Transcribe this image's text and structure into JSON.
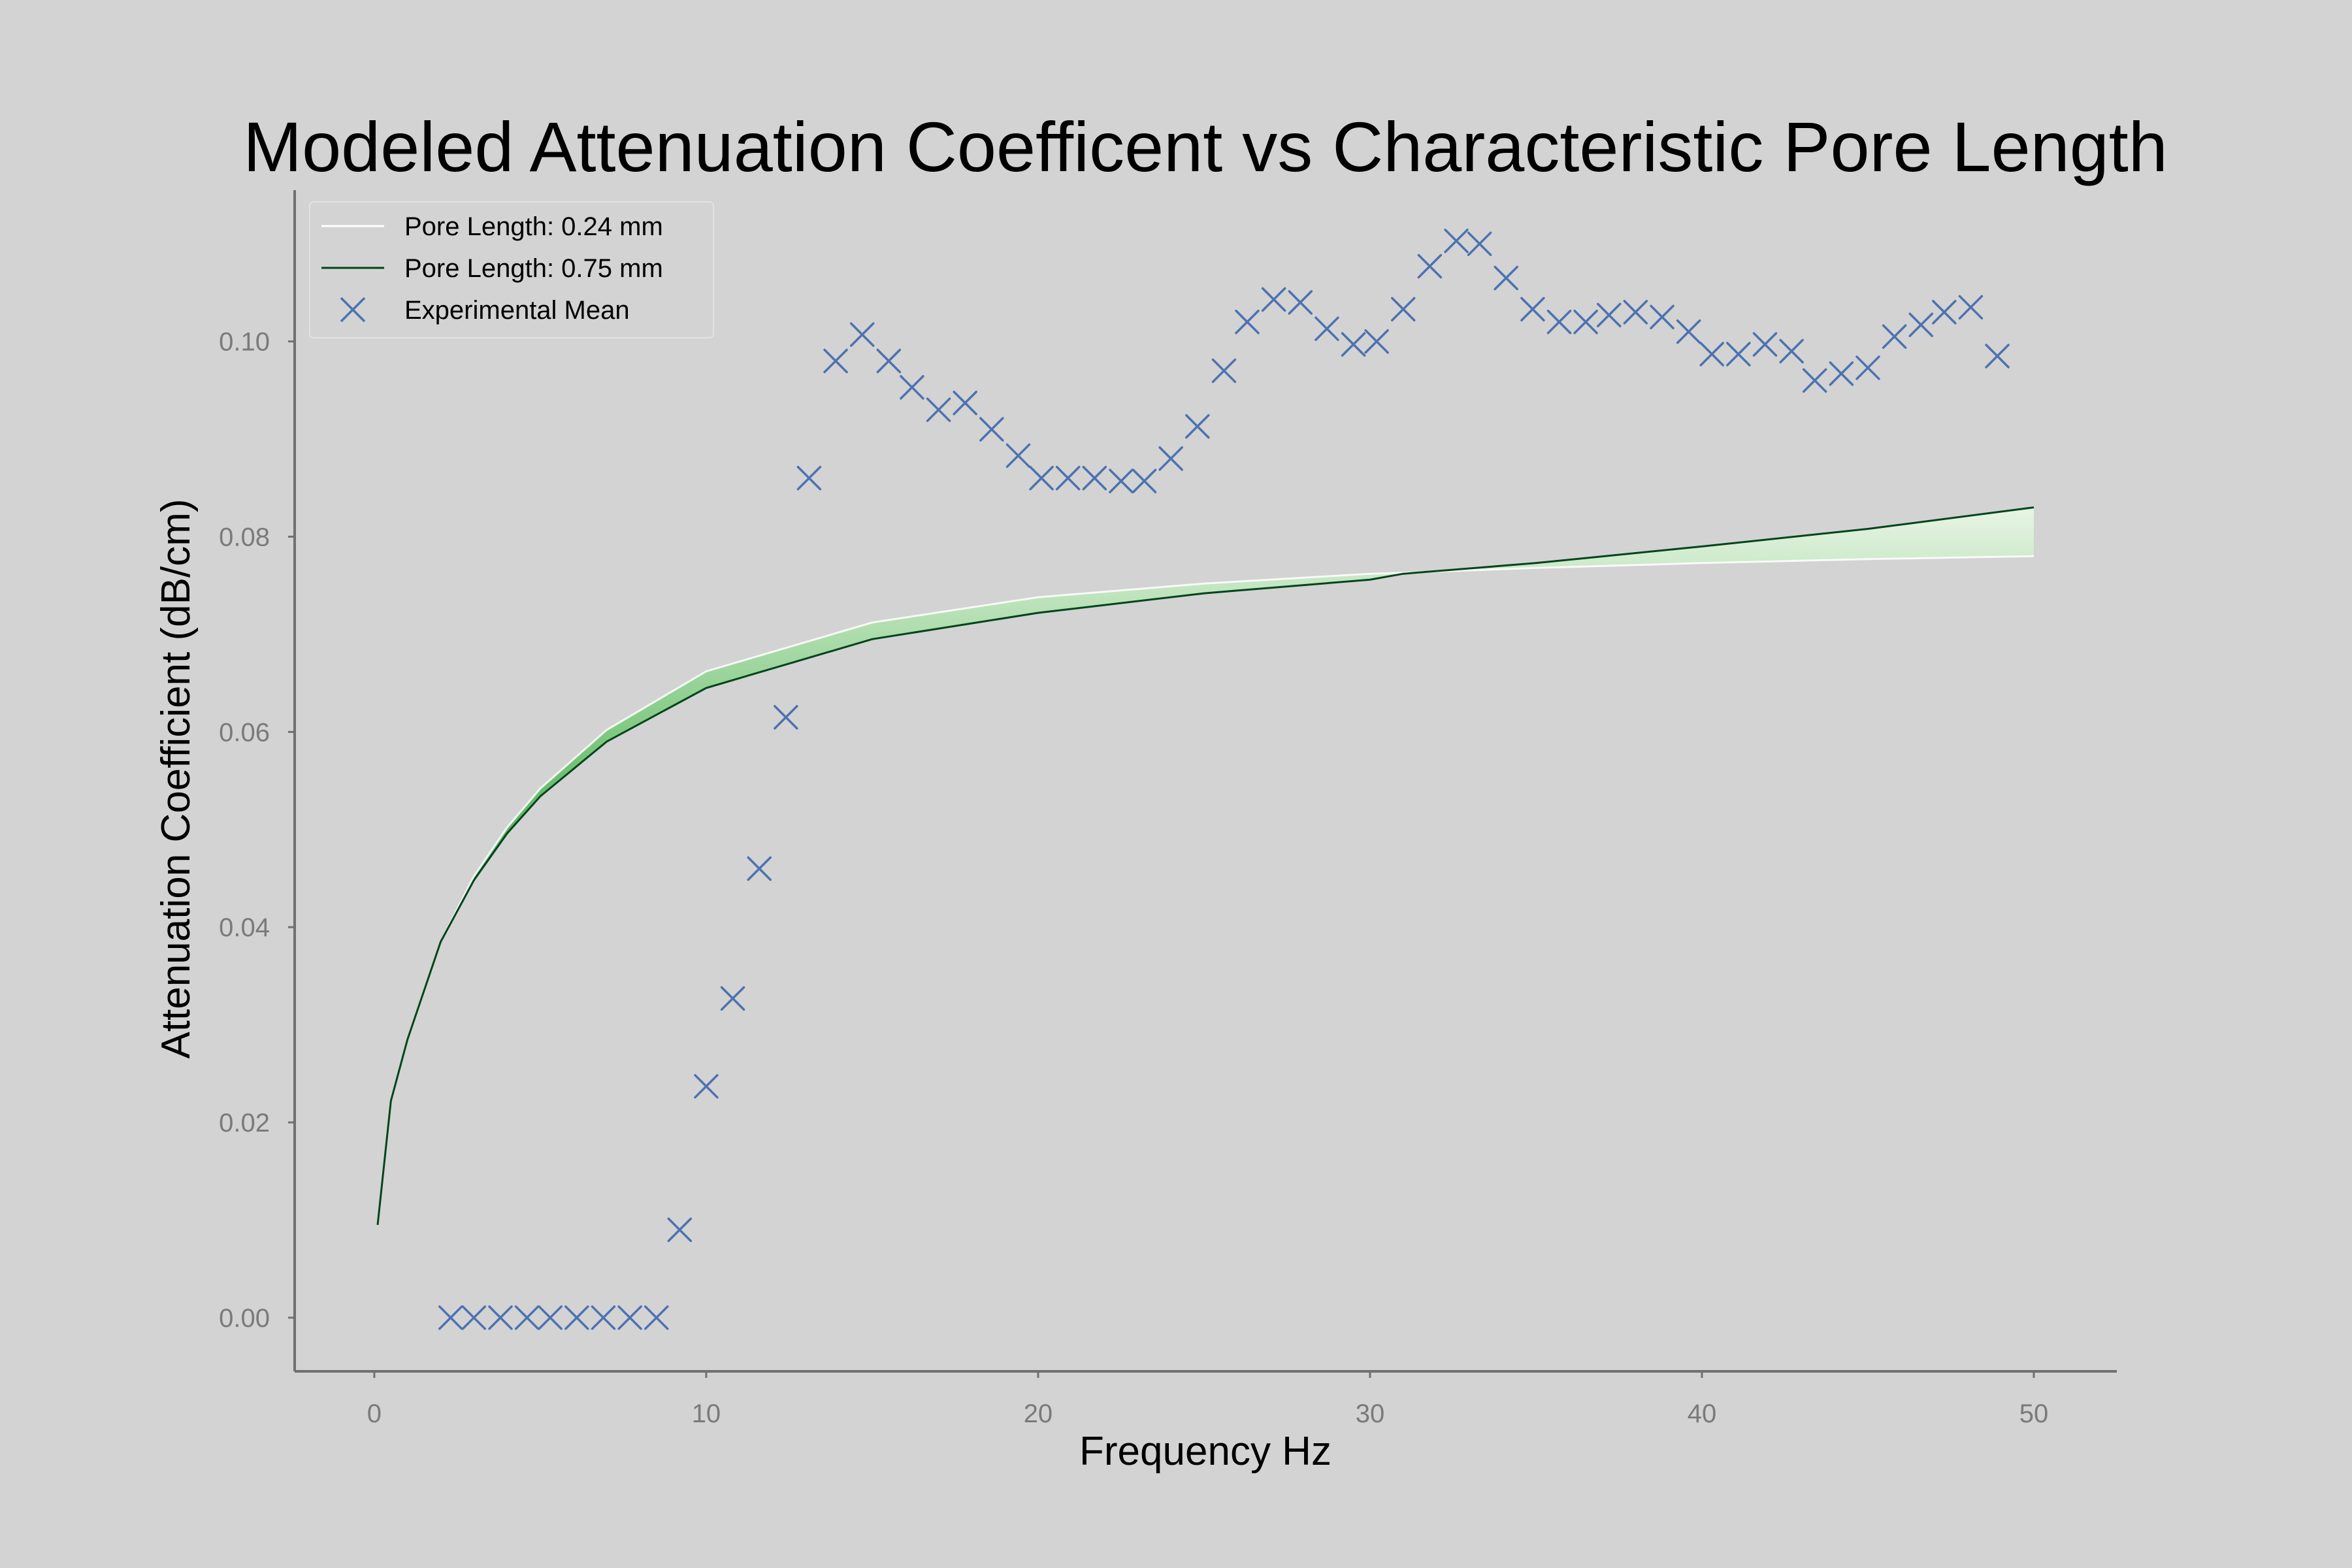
{
  "chart_data": {
    "type": "line",
    "title": "Modeled Attenuation Coefficent vs Characteristic Pore Length",
    "xlabel": "Frequency Hz",
    "ylabel": "Attenuation Coefficient (dB/cm)",
    "xlim": [
      -2.4,
      52.5
    ],
    "ylim": [
      -0.0055,
      0.1155
    ],
    "xticks": [
      0,
      10,
      20,
      30,
      40,
      50
    ],
    "xtick_labels": [
      "0",
      "10",
      "20",
      "30",
      "40",
      "50"
    ],
    "yticks": [
      0.0,
      0.02,
      0.04,
      0.06,
      0.08,
      0.1
    ],
    "ytick_labels": [
      "0.00",
      "0.02",
      "0.04",
      "0.06",
      "0.08",
      "0.10"
    ],
    "grid": false,
    "legend_position": "top-left",
    "legend": [
      {
        "label": "Pore Length: 0.24 mm",
        "color": "#ffffff",
        "kind": "line"
      },
      {
        "label": "Pore Length: 0.75 mm",
        "color": "#00441b",
        "kind": "line"
      },
      {
        "label": "Experimental Mean",
        "color": "#4c72b0",
        "kind": "x-marker"
      }
    ],
    "series": [
      {
        "name": "Pore Length: 0.24 mm",
        "color": "#ffffff",
        "x": [
          0.1,
          0.5,
          1,
          2,
          3,
          4,
          5,
          7,
          10,
          15,
          20,
          25,
          30,
          31,
          35,
          40,
          45,
          50
        ],
        "y": [
          0.0095,
          0.0222,
          0.0285,
          0.0385,
          0.0452,
          0.0502,
          0.0542,
          0.0602,
          0.0662,
          0.0712,
          0.0738,
          0.0752,
          0.0762,
          0.0763,
          0.0768,
          0.0773,
          0.0777,
          0.078
        ]
      },
      {
        "name": "Pore Length: 0.75 mm",
        "color": "#00441b",
        "x": [
          0.1,
          0.5,
          1,
          2,
          3,
          4,
          5,
          7,
          10,
          15,
          20,
          25,
          30,
          31,
          35,
          40,
          45,
          50
        ],
        "y": [
          0.0095,
          0.0222,
          0.0285,
          0.0385,
          0.0448,
          0.0496,
          0.0534,
          0.059,
          0.0645,
          0.0695,
          0.0722,
          0.0742,
          0.0756,
          0.0762,
          0.0773,
          0.079,
          0.0808,
          0.083
        ]
      },
      {
        "name": "Experimental Mean",
        "type": "scatter",
        "marker": "x",
        "color": "#4c72b0",
        "x": [
          2.3,
          3.0,
          3.8,
          4.6,
          5.3,
          6.1,
          6.9,
          7.7,
          8.5,
          9.2,
          10.0,
          10.8,
          11.6,
          12.4,
          13.1,
          13.9,
          14.7,
          15.5,
          16.2,
          17.0,
          17.8,
          18.6,
          19.4,
          20.1,
          20.9,
          21.7,
          22.5,
          23.2,
          24.0,
          24.8,
          25.6,
          26.3,
          27.1,
          27.9,
          28.7,
          29.5,
          30.2,
          31.0,
          31.8,
          32.6,
          33.3,
          34.1,
          34.9,
          35.7,
          36.5,
          37.2,
          38.0,
          38.8,
          39.6,
          40.3,
          41.1,
          41.9,
          42.7,
          43.4,
          44.2,
          45.0,
          45.8,
          46.6,
          47.3,
          48.1,
          48.9
        ],
        "y": [
          0.0,
          0.0,
          0.0,
          0.0,
          0.0,
          0.0,
          0.0,
          0.0,
          0.0,
          0.009,
          0.0237,
          0.0327,
          0.046,
          0.0615,
          0.086,
          0.098,
          0.1007,
          0.098,
          0.0953,
          0.093,
          0.0937,
          0.091,
          0.0883,
          0.086,
          0.086,
          0.086,
          0.0857,
          0.0857,
          0.088,
          0.0913,
          0.097,
          0.102,
          0.1043,
          0.104,
          0.1013,
          0.0997,
          0.1,
          0.1033,
          0.1077,
          0.1103,
          0.11,
          0.1065,
          0.1033,
          0.102,
          0.102,
          0.1027,
          0.103,
          0.1025,
          0.101,
          0.0987,
          0.0987,
          0.0997,
          0.099,
          0.096,
          0.0967,
          0.0973,
          0.1005,
          0.1017,
          0.103,
          0.1035,
          0.0985
        ]
      }
    ]
  }
}
